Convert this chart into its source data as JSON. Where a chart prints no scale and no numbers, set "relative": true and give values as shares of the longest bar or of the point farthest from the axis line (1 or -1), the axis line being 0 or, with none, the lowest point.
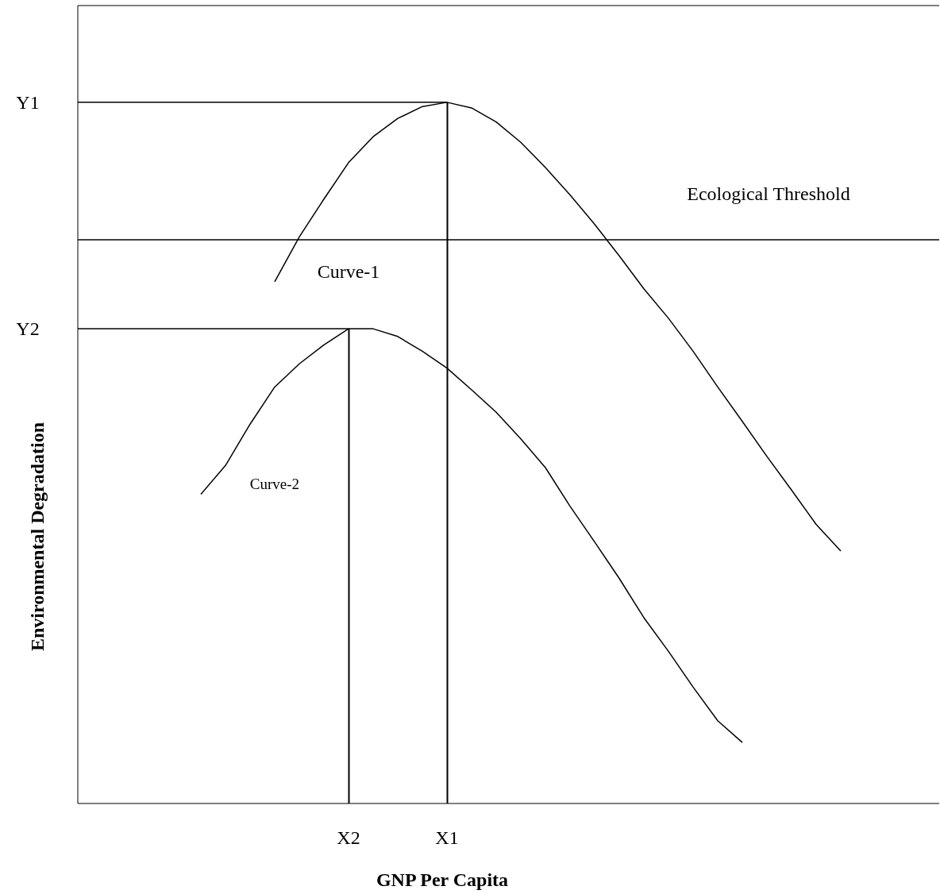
{
  "chart_data": {
    "type": "line",
    "xlabel": "GNP Per Capita",
    "ylabel": "Environmental Degradation",
    "marker": "none",
    "relative": true,
    "categories": [
      null,
      null,
      null,
      null,
      null,
      null,
      null,
      null,
      null,
      null,
      null,
      "X2",
      null,
      null,
      null,
      "X1",
      null,
      null,
      null,
      null,
      null,
      null,
      null,
      null,
      null,
      null,
      null,
      null,
      null,
      null,
      null,
      null,
      null,
      null,
      null,
      null
    ],
    "series": [
      {
        "color": "#000000",
        "values": [
          null,
          null,
          null,
          null,
          null,
          null,
          null,
          null,
          0.744,
          0.808,
          0.862,
          0.914,
          0.951,
          0.977,
          0.994,
          1,
          0.992,
          0.972,
          0.943,
          0.907,
          0.868,
          0.826,
          0.781,
          0.734,
          0.692,
          0.645,
          0.594,
          0.545,
          0.495,
          0.447,
          0.398,
          0.36,
          null,
          null,
          null,
          null
        ]
      },
      {
        "color": "#000000",
        "values": [
          null,
          null,
          null,
          null,
          null,
          0.441,
          0.482,
          0.541,
          0.594,
          0.627,
          0.654,
          0.677,
          0.677,
          0.666,
          0.645,
          0.621,
          0.59,
          0.558,
          0.52,
          0.479,
          0.424,
          0.373,
          0.321,
          0.265,
          0.217,
          0.166,
          0.118,
          0.087,
          null,
          null,
          null,
          null,
          null,
          null,
          null,
          null
        ]
      },
      {
        "color": "#000000",
        "values": [
          1,
          1,
          1,
          1,
          1,
          1,
          1,
          1,
          1,
          1,
          1,
          1,
          1,
          1,
          1,
          1,
          null,
          null,
          null,
          null,
          null,
          null,
          null,
          null,
          null,
          null,
          null,
          null,
          null,
          null,
          null,
          null,
          null,
          null,
          null,
          null
        ]
      },
      {
        "color": "#000000",
        "values": [
          0.677,
          0.677,
          0.677,
          0.677,
          0.677,
          0.677,
          0.677,
          0.677,
          0.677,
          0.677,
          0.677,
          0.677,
          null,
          null,
          null,
          null,
          null,
          null,
          null,
          null,
          null,
          null,
          null,
          null,
          null,
          null,
          null,
          null,
          null,
          null,
          null,
          null,
          null,
          null,
          null,
          null
        ]
      },
      {
        "type": "bar",
        "color": "#000000",
        "values": [
          null,
          null,
          null,
          null,
          null,
          null,
          null,
          null,
          null,
          null,
          null,
          0.677,
          null,
          null,
          null,
          1,
          null,
          null,
          null,
          null,
          null,
          null,
          null,
          null,
          null,
          null,
          null,
          null,
          null,
          null,
          null,
          null,
          null,
          null,
          null,
          null
        ]
      }
    ],
    "ref_lines": [
      {
        "axis": "y",
        "value": 0.804,
        "label": "Ecological Threshold",
        "color": "#000000"
      }
    ],
    "annotations": [
      "Curve-1",
      "Curve-2",
      "Y1",
      "Y2"
    ]
  }
}
